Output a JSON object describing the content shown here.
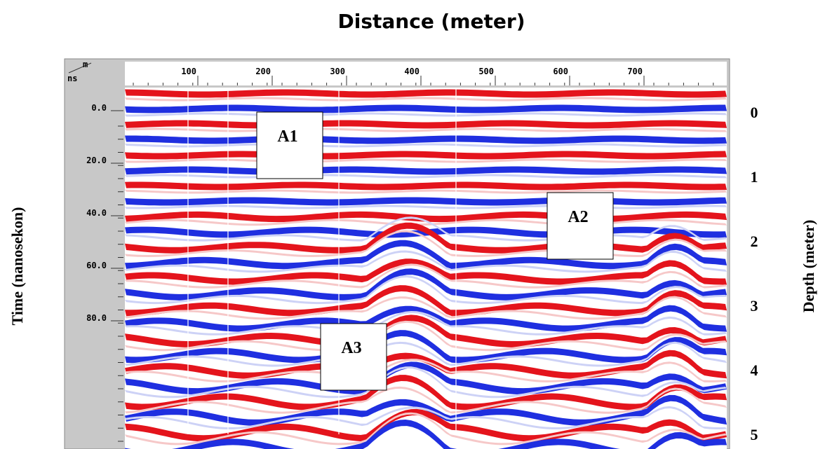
{
  "title": "Distance (meter)",
  "left_axis_label": "Time (nanosekon)",
  "right_axis_label": "Depth (meter)",
  "units": {
    "top": "m",
    "bottom": "ns"
  },
  "distance_ticks": [
    "100",
    "200",
    "300",
    "400",
    "500",
    "600",
    "700"
  ],
  "time_ticks": [
    "0.0",
    "20.0",
    "40.0",
    "60.0",
    "80.0"
  ],
  "depth_ticks": [
    "0",
    "1",
    "2",
    "3",
    "4",
    "5"
  ],
  "annotations": [
    "A1",
    "A2",
    "A3"
  ]
}
